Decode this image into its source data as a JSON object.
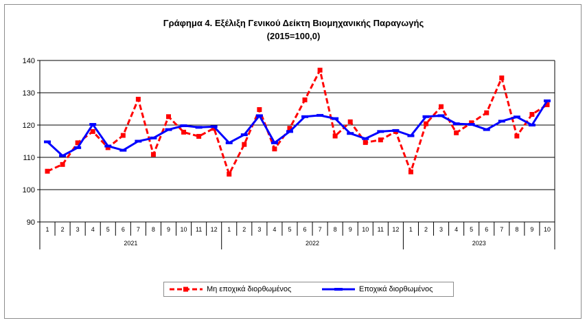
{
  "chart_data": {
    "type": "line",
    "title_line1": "Γράφημα 4. Εξέλιξη Γενικού Δείκτη Βιομηχανικής Παραγωγής",
    "title_line2": "(2015=100,0)",
    "ylim": [
      90,
      140
    ],
    "yticks": [
      90,
      100,
      110,
      120,
      130,
      140
    ],
    "grid": true,
    "legend_position": "bottom",
    "months": [
      "1",
      "2",
      "3",
      "4",
      "5",
      "6",
      "7",
      "8",
      "9",
      "10",
      "11",
      "12",
      "1",
      "2",
      "3",
      "4",
      "5",
      "6",
      "7",
      "8",
      "9",
      "10",
      "11",
      "12",
      "1",
      "2",
      "3",
      "4",
      "5",
      "6",
      "7",
      "8",
      "9",
      "10"
    ],
    "years": [
      {
        "label": "2021",
        "start": 0,
        "count": 12
      },
      {
        "label": "2022",
        "start": 12,
        "count": 12
      },
      {
        "label": "2023",
        "start": 24,
        "count": 10
      }
    ],
    "series": [
      {
        "name": "Μη εποχικά διορθωμένος",
        "color": "#ff0000",
        "style": "dashed",
        "marker": "square",
        "values": [
          105.7,
          107.8,
          114.5,
          118.0,
          113.0,
          116.8,
          128.0,
          110.9,
          122.6,
          117.8,
          116.5,
          119.0,
          104.8,
          114.0,
          124.8,
          112.6,
          119.0,
          127.8,
          137.0,
          116.6,
          121.0,
          114.6,
          115.4,
          118.0,
          105.5,
          120.4,
          125.7,
          117.6,
          120.7,
          123.8,
          134.6,
          116.6,
          123.3,
          126.3
        ]
      },
      {
        "name": "Εποχικά διορθωμένος",
        "color": "#0000ff",
        "style": "solid",
        "marker": "dash",
        "values": [
          114.8,
          110.5,
          113.0,
          120.2,
          113.5,
          112.2,
          115.0,
          116.0,
          118.6,
          119.8,
          119.3,
          119.5,
          114.5,
          117.0,
          122.9,
          114.5,
          118.0,
          122.6,
          123.0,
          122.0,
          117.4,
          115.8,
          118.0,
          118.3,
          116.7,
          122.6,
          122.9,
          120.4,
          120.2,
          118.6,
          121.2,
          122.5,
          120.0,
          127.5
        ]
      }
    ]
  }
}
